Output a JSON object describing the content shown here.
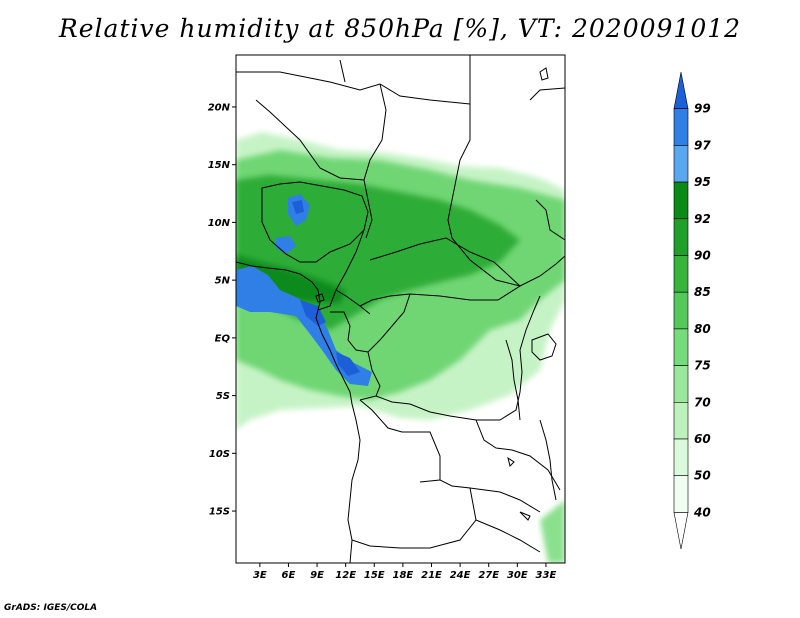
{
  "title": "Relative humidity at 850hPa [%], VT: 2020091012",
  "credit": "GrADS: IGES/COLA",
  "map": {
    "lat_labels": [
      "20N",
      "15N",
      "10N",
      "5N",
      "EQ",
      "5S",
      "10S",
      "15S"
    ],
    "lon_labels": [
      "3E",
      "6E",
      "9E",
      "12E",
      "15E",
      "18E",
      "21E",
      "24E",
      "27E",
      "30E",
      "33E"
    ],
    "lon_range": [
      0.5,
      35
    ],
    "lat_range": [
      -19.5,
      24.5
    ]
  },
  "colorbar": {
    "labels": [
      "99",
      "97",
      "95",
      "92",
      "90",
      "85",
      "80",
      "75",
      "70",
      "60",
      "50",
      "40"
    ],
    "colors": [
      "#1c5fd8",
      "#2f7fe6",
      "#5aa6f0",
      "#0a8a17",
      "#1fa02a",
      "#35b43e",
      "#52c95a",
      "#76db7b",
      "#9ae89c",
      "#bdf2bd",
      "#dafadb",
      "#f0fdf0",
      "#ffffff"
    ]
  }
}
